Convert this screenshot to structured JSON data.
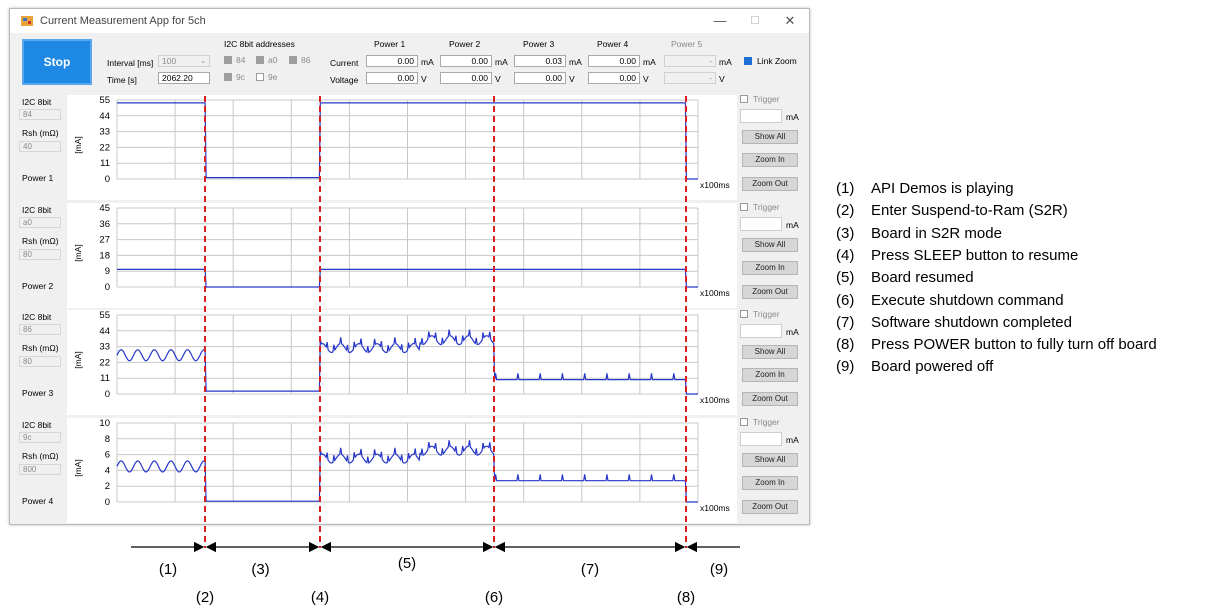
{
  "window": {
    "title": "Current Measurement App for 5ch",
    "controls": {
      "minimize": "—",
      "maximize": "☐",
      "close": "✕"
    }
  },
  "toolbar": {
    "stop_label": "Stop",
    "interval_label": "Interval [ms]",
    "interval_value": "100",
    "time_label": "Time [s]",
    "time_value": "2062.20",
    "i2c_header": "I2C 8bit addresses",
    "addresses": [
      "84",
      "a0",
      "86",
      "9c",
      "9e"
    ],
    "current_label": "Current",
    "voltage_label": "Voltage",
    "link_zoom_label": "Link Zoom",
    "power_columns": [
      {
        "name": "Power 1",
        "current": "0.00",
        "voltage": "0.00"
      },
      {
        "name": "Power 2",
        "current": "0.00",
        "voltage": "0.00"
      },
      {
        "name": "Power 3",
        "current": "0.03",
        "voltage": "0.00"
      },
      {
        "name": "Power 4",
        "current": "0.00",
        "voltage": "0.00"
      },
      {
        "name": "Power 5",
        "current": "-",
        "voltage": "-"
      }
    ],
    "unit_ma": "mA",
    "unit_v": "V"
  },
  "channels": [
    {
      "i2c_label": "I2C 8bit",
      "address": "84",
      "rsh_label": "Rsh (mΩ)",
      "rsh": "40",
      "power_label": "Power 1",
      "y_ticks": [
        "55",
        "44",
        "33",
        "22",
        "11",
        "0"
      ]
    },
    {
      "i2c_label": "I2C 8bit",
      "address": "a0",
      "rsh_label": "Rsh (mΩ)",
      "rsh": "80",
      "power_label": "Power 2",
      "y_ticks": [
        "45",
        "36",
        "27",
        "18",
        "9",
        "0"
      ]
    },
    {
      "i2c_label": "I2C 8bit",
      "address": "86",
      "rsh_label": "Rsh (mΩ)",
      "rsh": "80",
      "power_label": "Power 3",
      "y_ticks": [
        "55",
        "44",
        "33",
        "22",
        "11",
        "0"
      ]
    },
    {
      "i2c_label": "I2C 8bit",
      "address": "9c",
      "rsh_label": "Rsh (mΩ)",
      "rsh": "800",
      "power_label": "Power 4",
      "y_ticks": [
        "10",
        "8",
        "6",
        "4",
        "2",
        "0"
      ]
    }
  ],
  "plot": {
    "y_unit": "[mA]",
    "x_unit": "x100ms"
  },
  "side_controls": {
    "trigger_label": "Trigger",
    "unit": "mA",
    "show_all": "Show All",
    "zoom_in": "Zoom In",
    "zoom_out": "Zoom Out"
  },
  "chart_data": {
    "type": "line",
    "xlabel": "x100ms",
    "ylabel": "[mA]",
    "panels": [
      {
        "name": "Power 1",
        "ylim": [
          0,
          55
        ],
        "phase_levels": [
          53,
          1,
          53,
          53,
          0
        ]
      },
      {
        "name": "Power 2",
        "ylim": [
          0,
          45
        ],
        "phase_levels": [
          10,
          0,
          10,
          10,
          0
        ]
      },
      {
        "name": "Power 3",
        "ylim": [
          0,
          55
        ],
        "phase_levels": [
          27,
          2,
          32,
          10,
          0
        ]
      },
      {
        "name": "Power 4",
        "ylim": [
          0,
          10
        ],
        "phase_levels": [
          4.5,
          0.1,
          5.5,
          2.7,
          0
        ]
      }
    ],
    "phases": [
      "(1)",
      "(3)",
      "(5)",
      "(7)",
      "(9)"
    ],
    "events": [
      "(2)",
      "(4)",
      "(6)",
      "(8)"
    ]
  },
  "annotations": {
    "phase_labels": [
      "(1)",
      "(3)",
      "(5)",
      "(7)",
      "(9)"
    ],
    "event_labels": [
      "(2)",
      "(4)",
      "(6)",
      "(8)"
    ],
    "line_color": "#d62020"
  },
  "legend": [
    {
      "num": "(1)",
      "text": "API Demos is playing"
    },
    {
      "num": "(2)",
      "text": "Enter Suspend-to-Ram (S2R)"
    },
    {
      "num": "(3)",
      "text": "Board in S2R mode"
    },
    {
      "num": "(4)",
      "text": "Press SLEEP button to resume"
    },
    {
      "num": "(5)",
      "text": "Board resumed"
    },
    {
      "num": "(6)",
      "text": "Execute shutdown command"
    },
    {
      "num": "(7)",
      "text": "Software shutdown completed"
    },
    {
      "num": "(8)",
      "text": "Press POWER button to fully turn off board"
    },
    {
      "num": "(9)",
      "text": "Board powered off"
    }
  ]
}
